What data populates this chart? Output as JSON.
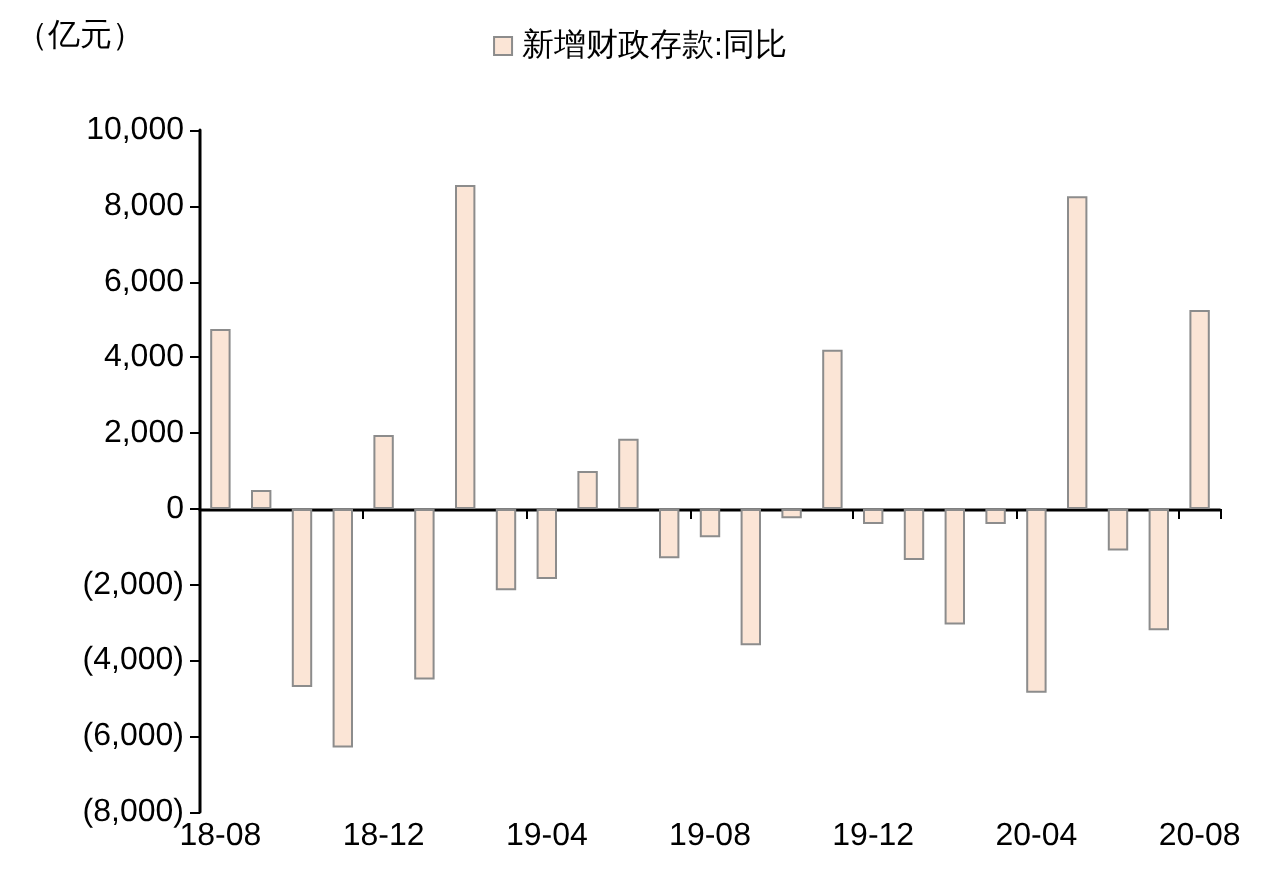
{
  "chart_data": {
    "type": "bar",
    "ylabel": "（亿元）",
    "categories": [
      "18-08",
      null,
      null,
      null,
      "18-12",
      null,
      null,
      null,
      "19-04",
      null,
      null,
      null,
      "19-08",
      null,
      null,
      null,
      "19-12",
      null,
      null,
      null,
      "20-04",
      null,
      null,
      null,
      "20-08"
    ],
    "series": [
      {
        "name": "新增财政存款:同比",
        "color": "#fbe5d6",
        "values": [
          4750,
          500,
          -4700,
          -6300,
          1950,
          -4500,
          8550,
          -2150,
          -1850,
          1000,
          1850,
          -1300,
          -750,
          -3600,
          -250,
          4200,
          -400,
          -1350,
          -3050,
          -400,
          -4850,
          8250,
          -1100,
          -3200,
          5250
        ]
      }
    ],
    "ylim": [
      -8000,
      10000
    ],
    "yticks": [
      {
        "value": -8000,
        "label": "(8,000)"
      },
      {
        "value": -6000,
        "label": "(6,000)"
      },
      {
        "value": -4000,
        "label": "(4,000)"
      },
      {
        "value": -2000,
        "label": "(2,000)"
      },
      {
        "value": 0,
        "label": "0"
      },
      {
        "value": 2000,
        "label": "2,000"
      },
      {
        "value": 4000,
        "label": "4,000"
      },
      {
        "value": 6000,
        "label": "6,000"
      },
      {
        "value": 8000,
        "label": "8,000"
      },
      {
        "value": 10000,
        "label": "10,000"
      }
    ],
    "legend": "top"
  }
}
